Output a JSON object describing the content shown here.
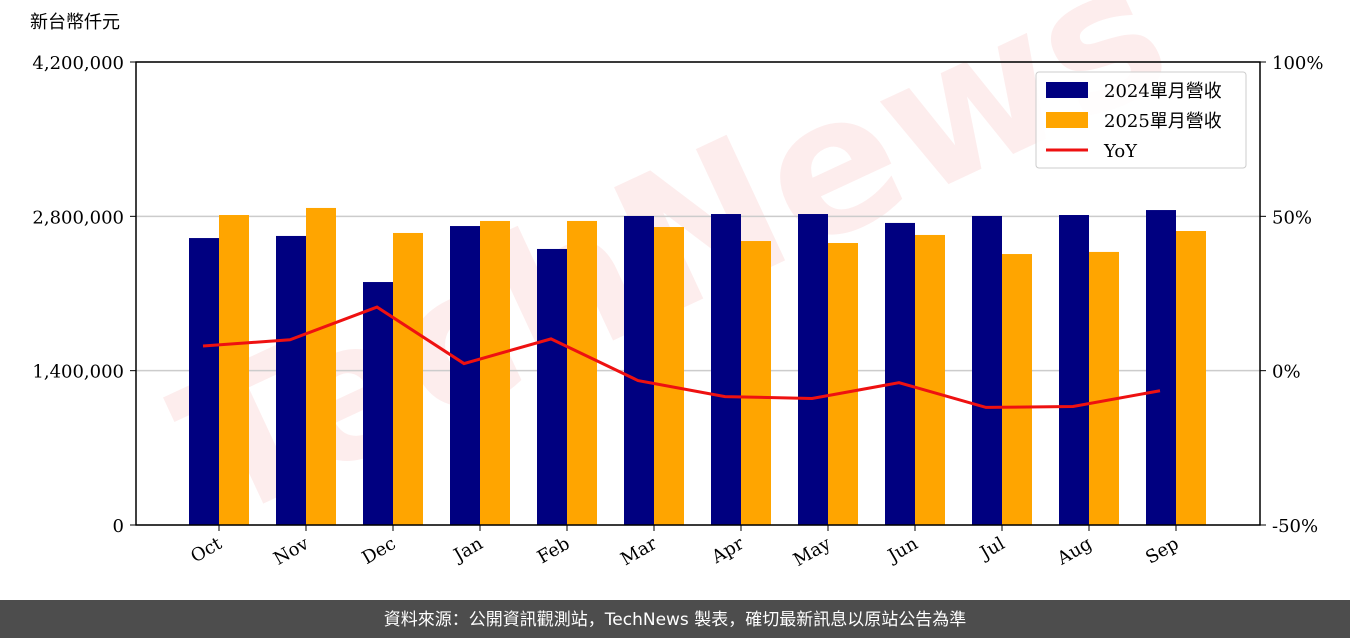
{
  "chart_data": {
    "type": "bar",
    "unit_label": "新台幣仟元",
    "watermark": "TechNews",
    "footer": "資料來源：公開資訊觀測站，TechNews 製表，確切最新訊息以原站公告為準",
    "categories": [
      "Oct",
      "Nov",
      "Dec",
      "Jan",
      "Feb",
      "Mar",
      "Apr",
      "May",
      "Jun",
      "Jul",
      "Aug",
      "Sep"
    ],
    "series": [
      {
        "name": "2024單月營收",
        "color": "#000080",
        "values": [
          2603000,
          2622000,
          2204000,
          2712000,
          2504000,
          2803000,
          2821000,
          2821000,
          2740000,
          2803000,
          2812000,
          2857000
        ]
      },
      {
        "name": "2025單月營收",
        "color": "#ffa500",
        "values": [
          2812000,
          2876000,
          2649000,
          2758000,
          2758000,
          2703000,
          2576000,
          2558000,
          2631000,
          2458000,
          2477000,
          2667000
        ]
      },
      {
        "name": "YoY",
        "color": "#ee1111",
        "type": "line",
        "axis": "y2",
        "values": [
          8.0,
          10.0,
          20.6,
          2.3,
          10.3,
          -3.2,
          -8.4,
          -9.0,
          -3.9,
          -11.9,
          -11.6,
          -6.5
        ]
      }
    ],
    "ylim": [
      0,
      4200000
    ],
    "yticks": [
      0,
      {
        "value": 1400000,
        "label": "1,400,000"
      },
      {
        "value": 2800000,
        "label": "2,800,000"
      },
      {
        "value": 4200000,
        "label": "4,200,000"
      }
    ],
    "y2lim": [
      -50,
      100
    ],
    "y2ticks": [
      {
        "value": -50,
        "label": "-50%"
      },
      {
        "value": 0,
        "label": "0%"
      },
      {
        "value": 50,
        "label": "50%"
      },
      {
        "value": 100,
        "label": "100%"
      }
    ],
    "grid": true,
    "legend": "upper right"
  }
}
